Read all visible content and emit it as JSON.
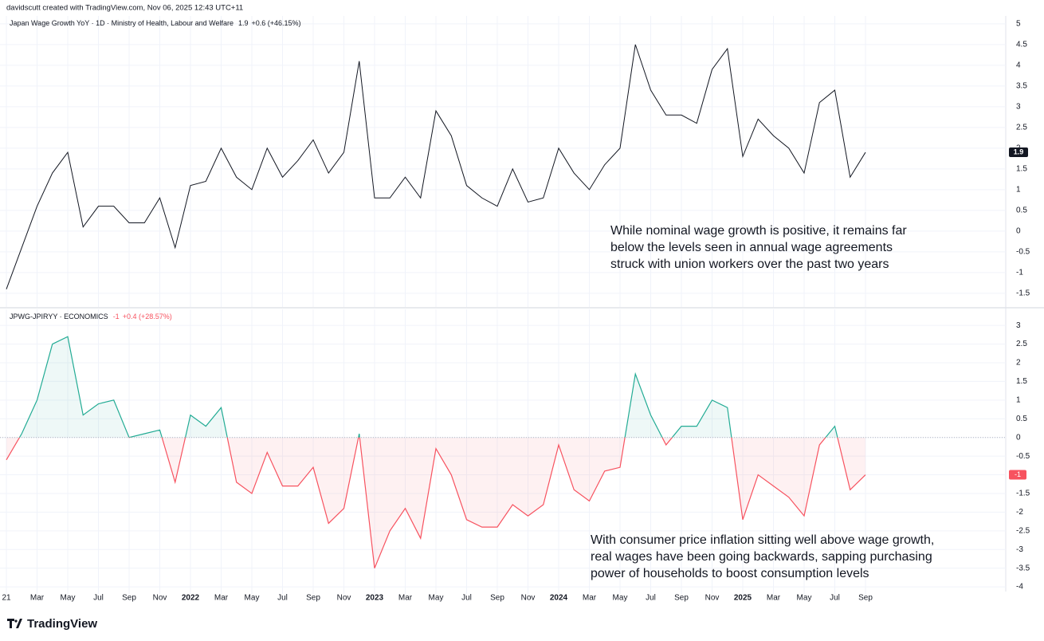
{
  "header": "davidscutt created with TradingView.com, Nov 06, 2025 12:43 UTC+11",
  "branding": "TradingView",
  "chart_data": [
    {
      "type": "line",
      "legend": "Japan Wage Growth YoY · 1D · Ministry of Health, Labour and Welfare",
      "change": "+0.6 (+46.15%)",
      "series": [
        {
          "name": "Japan Wage Growth YoY",
          "color": "#131722",
          "values": [
            -1.4,
            -0.4,
            0.6,
            1.4,
            1.9,
            0.1,
            0.6,
            0.6,
            0.2,
            0.2,
            0.8,
            -0.4,
            1.1,
            1.2,
            2.0,
            1.3,
            1.0,
            2.0,
            1.3,
            1.7,
            2.2,
            1.4,
            1.9,
            4.1,
            0.8,
            0.8,
            1.3,
            0.8,
            2.9,
            2.3,
            1.1,
            0.8,
            0.6,
            1.5,
            0.7,
            0.8,
            2.0,
            1.4,
            1.0,
            1.6,
            2.0,
            4.5,
            3.4,
            2.8,
            2.8,
            2.6,
            3.9,
            4.4,
            1.8,
            2.7,
            2.3,
            2.0,
            1.4,
            3.1,
            3.4,
            1.3,
            1.9
          ]
        }
      ],
      "ylim": [
        -1.83,
        5.19
      ],
      "yticks": [
        5,
        4.5,
        4,
        3.5,
        3,
        2.5,
        2,
        1.5,
        1,
        0.5,
        0,
        -0.5,
        -1,
        -1.5
      ],
      "grid": true,
      "annotation": [
        "While nominal wage growth is positive, it remains far",
        "below the levels seen in annual wage agreements",
        "struck with union workers over the past two years"
      ]
    },
    {
      "type": "area",
      "legend": "JPWG-JPIRYY · ECONOMICS",
      "change": "+0.4 (+28.57%)",
      "positive_color": "#22ab94",
      "negative_color": "#f7525f",
      "categories": [
        "21",
        null,
        "Mar",
        null,
        "May",
        null,
        "Jul",
        null,
        "Sep",
        null,
        "Nov",
        null,
        "2022",
        null,
        "Mar",
        null,
        "May",
        null,
        "Jul",
        null,
        "Sep",
        null,
        "Nov",
        null,
        "2023",
        null,
        "Mar",
        null,
        "May",
        null,
        "Jul",
        null,
        "Sep",
        null,
        "Nov",
        null,
        "2024",
        null,
        "Mar",
        null,
        "May",
        null,
        "Jul",
        null,
        "Sep",
        null,
        "Nov",
        null,
        "2025",
        null,
        "Mar",
        null,
        "May",
        null,
        "Jul",
        null,
        "Sep"
      ],
      "series": [
        {
          "name": "JPWG-JPIRYY",
          "values": [
            -0.6,
            0.1,
            1.0,
            2.5,
            2.7,
            0.6,
            0.9,
            1.0,
            0.0,
            0.1,
            0.2,
            -1.2,
            0.6,
            0.3,
            0.8,
            -1.2,
            -1.5,
            -0.4,
            -1.3,
            -1.3,
            -0.8,
            -2.3,
            -1.9,
            0.1,
            -3.5,
            -2.5,
            -1.9,
            -2.7,
            -0.3,
            -1.0,
            -2.2,
            -2.4,
            -2.4,
            -1.8,
            -2.1,
            -1.8,
            -0.2,
            -1.4,
            -1.7,
            -0.9,
            -0.8,
            1.7,
            0.6,
            -0.2,
            0.3,
            0.3,
            1.0,
            0.8,
            -2.2,
            -1.0,
            -1.3,
            -1.6,
            -2.1,
            -0.2,
            0.3,
            -1.4,
            -1.0
          ]
        }
      ],
      "ylim": [
        -4.19,
        3.43
      ],
      "yticks": [
        3,
        2.5,
        2,
        1.5,
        1,
        0.5,
        0,
        -0.5,
        -1,
        -1.5,
        -2,
        -2.5,
        -3,
        -3.5,
        -4
      ],
      "grid": true,
      "annotation": [
        "With consumer price inflation sitting well above wage growth,",
        "real wages have been going backwards, sapping purchasing",
        "power of households to boost consumption levels"
      ]
    }
  ]
}
